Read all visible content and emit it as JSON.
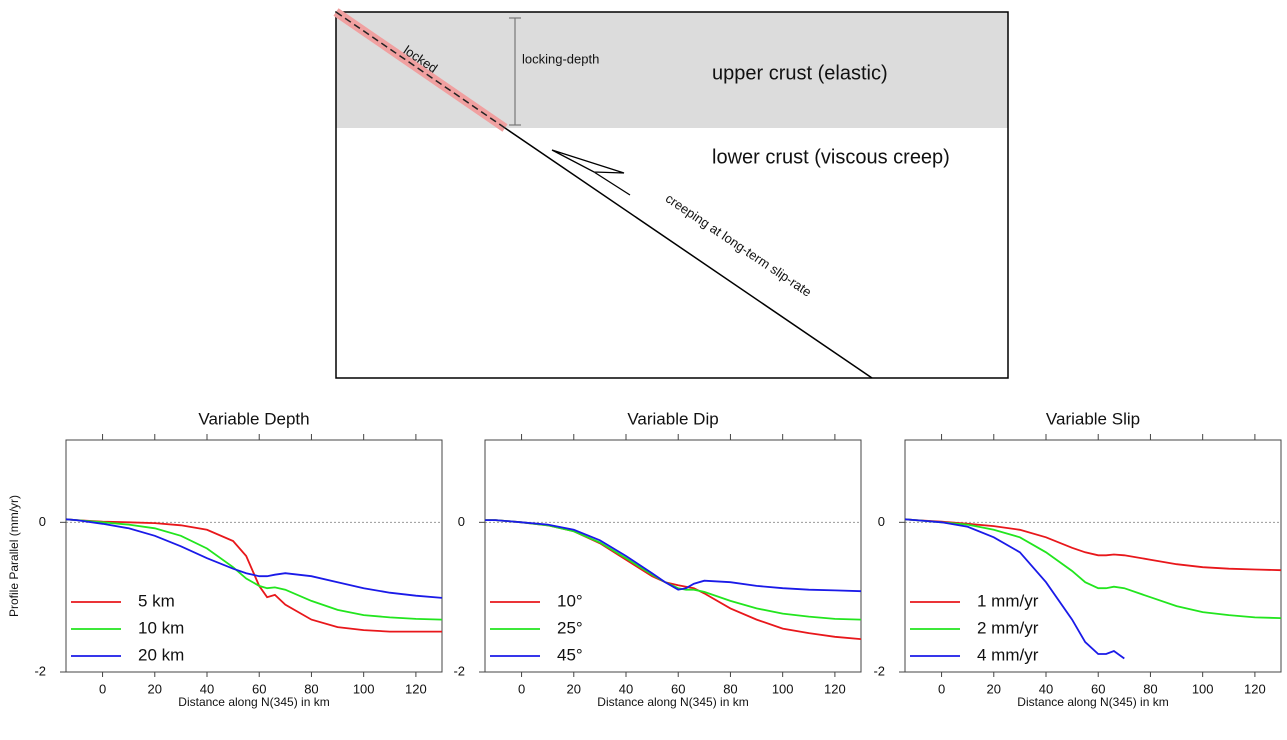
{
  "diagram": {
    "locked": "locked",
    "locking_depth": "locking-depth",
    "upper": "upper crust (elastic)",
    "lower": "lower crust (viscous creep)",
    "creeping": "creeping at long-term slip-rate"
  },
  "chart_data": [
    {
      "type": "line",
      "title": "Variable Depth",
      "xlabel": "Distance along N(345) in km",
      "ylabel": "Profile Parallel (mm/yr)",
      "x": [
        -14,
        -10,
        0,
        10,
        20,
        30,
        40,
        50,
        55,
        60,
        63,
        66,
        70,
        80,
        90,
        100,
        110,
        120,
        130
      ],
      "series": [
        {
          "name": "5 km",
          "color": "#e8171b",
          "values": [
            0.04,
            0.03,
            0.01,
            0,
            -0.01,
            -0.04,
            -0.1,
            -0.25,
            -0.45,
            -0.85,
            -1.0,
            -0.97,
            -1.1,
            -1.3,
            -1.4,
            -1.44,
            -1.46,
            -1.46,
            -1.46
          ]
        },
        {
          "name": "10 km",
          "color": "#22e51e",
          "values": [
            0.04,
            0.03,
            0,
            -0.03,
            -0.08,
            -0.18,
            -0.35,
            -0.6,
            -0.75,
            -0.85,
            -0.88,
            -0.87,
            -0.9,
            -1.05,
            -1.17,
            -1.24,
            -1.27,
            -1.29,
            -1.3
          ]
        },
        {
          "name": "20 km",
          "color": "#1a1ae8",
          "values": [
            0.04,
            0.03,
            -0.02,
            -0.08,
            -0.18,
            -0.32,
            -0.48,
            -0.62,
            -0.68,
            -0.72,
            -0.72,
            -0.7,
            -0.68,
            -0.72,
            -0.8,
            -0.88,
            -0.94,
            -0.98,
            -1.01
          ]
        }
      ],
      "xlim": [
        -14,
        130
      ],
      "xticks": [
        0,
        20,
        40,
        60,
        80,
        100,
        120
      ],
      "ylim": [
        -2,
        1.1
      ],
      "yticks": [
        0,
        -2
      ],
      "grid": true,
      "legend": "lower-left"
    },
    {
      "type": "line",
      "title": "Variable Dip",
      "xlabel": "Distance along N(345) in km",
      "x": [
        -14,
        -10,
        0,
        10,
        20,
        30,
        40,
        50,
        55,
        60,
        63,
        66,
        70,
        80,
        90,
        100,
        110,
        120,
        130
      ],
      "series": [
        {
          "name": "10°",
          "color": "#e8171b",
          "values": [
            0.03,
            0.03,
            0,
            -0.04,
            -0.12,
            -0.28,
            -0.5,
            -0.72,
            -0.8,
            -0.84,
            -0.86,
            -0.88,
            -0.95,
            -1.15,
            -1.3,
            -1.42,
            -1.48,
            -1.53,
            -1.56
          ]
        },
        {
          "name": "25°",
          "color": "#22e51e",
          "values": [
            0.03,
            0.03,
            0,
            -0.04,
            -0.12,
            -0.27,
            -0.48,
            -0.7,
            -0.8,
            -0.88,
            -0.9,
            -0.9,
            -0.93,
            -1.05,
            -1.15,
            -1.22,
            -1.26,
            -1.29,
            -1.3
          ]
        },
        {
          "name": "45°",
          "color": "#1a1ae8",
          "values": [
            0.03,
            0.03,
            0,
            -0.03,
            -0.1,
            -0.24,
            -0.45,
            -0.68,
            -0.8,
            -0.9,
            -0.88,
            -0.82,
            -0.78,
            -0.8,
            -0.85,
            -0.88,
            -0.9,
            -0.91,
            -0.92
          ]
        }
      ],
      "xlim": [
        -14,
        130
      ],
      "xticks": [
        0,
        20,
        40,
        60,
        80,
        100,
        120
      ],
      "ylim": [
        -2,
        1.1
      ],
      "yticks": [
        0,
        -2
      ],
      "grid": true,
      "legend": "lower-left"
    },
    {
      "type": "line",
      "title": "Variable Slip",
      "xlabel": "Distance along N(345) in km",
      "x": [
        -14,
        -10,
        0,
        10,
        20,
        30,
        40,
        50,
        55,
        60,
        63,
        66,
        70,
        80,
        90,
        100,
        110,
        120,
        130
      ],
      "series": [
        {
          "name": "1 mm/yr",
          "color": "#e8171b",
          "values": [
            0.04,
            0.03,
            0.01,
            -0.02,
            -0.05,
            -0.1,
            -0.2,
            -0.34,
            -0.4,
            -0.44,
            -0.44,
            -0.43,
            -0.44,
            -0.5,
            -0.56,
            -0.6,
            -0.62,
            -0.63,
            -0.64
          ]
        },
        {
          "name": "2 mm/yr",
          "color": "#22e51e",
          "values": [
            0.04,
            0.03,
            0,
            -0.03,
            -0.1,
            -0.2,
            -0.4,
            -0.65,
            -0.8,
            -0.88,
            -0.88,
            -0.86,
            -0.88,
            -1.0,
            -1.12,
            -1.2,
            -1.24,
            -1.27,
            -1.28
          ]
        },
        {
          "name": "4 mm/yr",
          "color": "#1a1ae8",
          "values": [
            0.04,
            0.03,
            0,
            -0.06,
            -0.2,
            -0.4,
            -0.8,
            -1.3,
            -1.6,
            -1.76,
            -1.76,
            -1.72,
            -1.82,
            null,
            null,
            null,
            null,
            null,
            null
          ]
        }
      ],
      "xlim": [
        -14,
        130
      ],
      "xticks": [
        0,
        20,
        40,
        60,
        80,
        100,
        120
      ],
      "ylim": [
        -2,
        1.1
      ],
      "yticks": [
        0,
        -2
      ],
      "grid": true,
      "legend": "lower-left"
    }
  ]
}
